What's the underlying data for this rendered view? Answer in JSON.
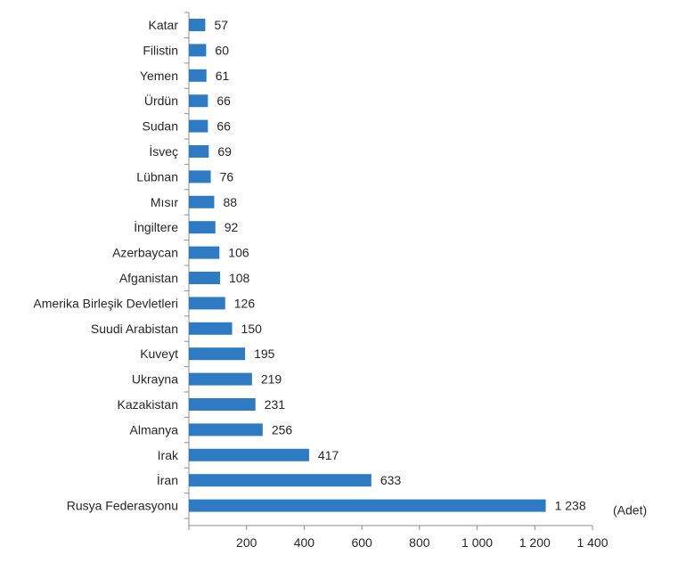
{
  "chart_data": {
    "type": "bar",
    "orientation": "horizontal",
    "categories": [
      "Katar",
      "Filistin",
      "Yemen",
      "Ürdün",
      "Sudan",
      "İsveç",
      "Lübnan",
      "Mısır",
      "İngiltere",
      "Azerbaycan",
      "Afganistan",
      "Amerika Birleşik Devletleri",
      "Suudi Arabistan",
      "Kuveyt",
      "Ukrayna",
      "Kazakistan",
      "Almanya",
      "Irak",
      "İran",
      "Rusya Federasyonu"
    ],
    "values": [
      57,
      60,
      61,
      66,
      66,
      69,
      76,
      88,
      92,
      106,
      108,
      126,
      150,
      195,
      219,
      231,
      256,
      417,
      633,
      1238
    ],
    "value_labels": [
      "57",
      "60",
      "61",
      "66",
      "66",
      "69",
      "76",
      "88",
      "92",
      "106",
      "108",
      "126",
      "150",
      "195",
      "219",
      "231",
      "256",
      "417",
      "633",
      "1 238"
    ],
    "xlim": [
      0,
      1400
    ],
    "xticks": [
      200,
      400,
      600,
      800,
      1000,
      1200,
      1400
    ],
    "xtick_labels": [
      "200",
      "400",
      "600",
      "800",
      "1 000",
      "1 200",
      "1 400"
    ],
    "unit_label": "(Adet)",
    "bar_color": "#2E7BC4",
    "grid": false,
    "legend": "none"
  }
}
